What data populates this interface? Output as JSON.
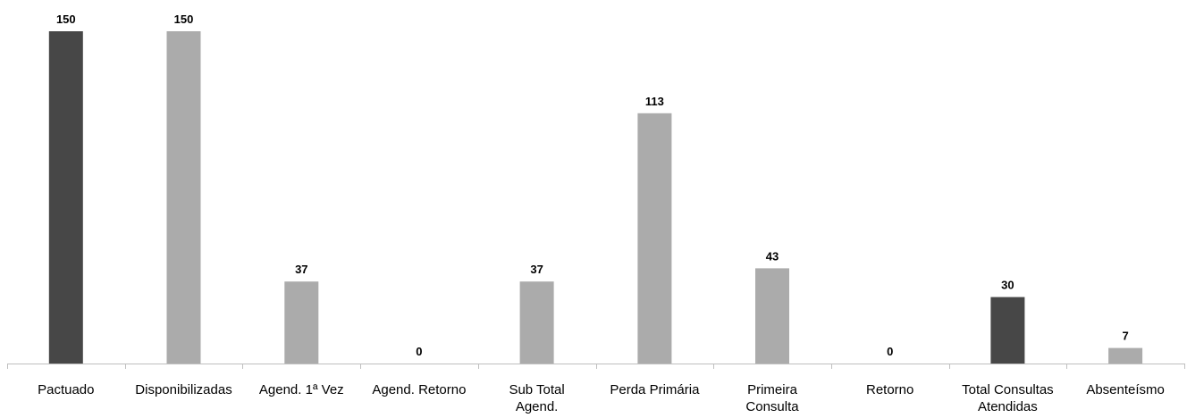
{
  "chart_data": {
    "type": "bar",
    "title": "",
    "xlabel": "",
    "ylabel": "",
    "ylim": [
      0,
      150
    ],
    "grid": false,
    "legend": "none",
    "categories": [
      [
        "Pactuado"
      ],
      [
        "Disponibilizadas"
      ],
      [
        "Agend. 1ª Vez"
      ],
      [
        "Agend. Retorno"
      ],
      [
        "Sub Total",
        "Agend."
      ],
      [
        "Perda Primária"
      ],
      [
        "Primeira",
        "Consulta"
      ],
      [
        "Retorno"
      ],
      [
        "Total Consultas",
        "Atendidas"
      ],
      [
        "Absenteísmo"
      ]
    ],
    "values": [
      150,
      150,
      37,
      0,
      37,
      113,
      43,
      0,
      30,
      7
    ],
    "bar_colors": [
      "#474747",
      "#ababab",
      "#ababab",
      "#ababab",
      "#ababab",
      "#ababab",
      "#ababab",
      "#ababab",
      "#474747",
      "#ababab"
    ],
    "axis_color": "#bfbfbf"
  }
}
